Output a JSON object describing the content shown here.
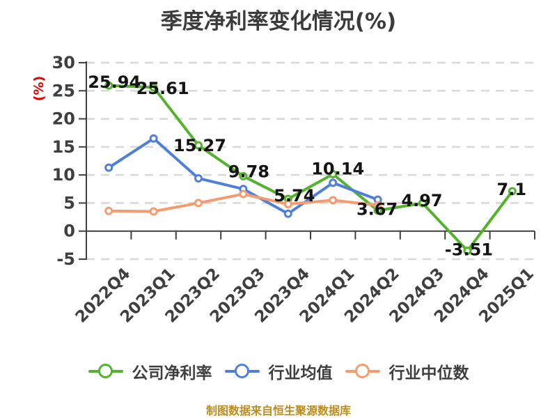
{
  "chart_data": {
    "type": "line",
    "title": "季度净利率变化情况(%)",
    "y_unit_label": "(%)",
    "footer": "制图数据来自恒生聚源数据库",
    "categories": [
      "2022Q4",
      "2023Q1",
      "2023Q2",
      "2023Q3",
      "2023Q4",
      "2024Q1",
      "2024Q2",
      "2024Q3",
      "2024Q4",
      "2025Q1"
    ],
    "y_ticks": [
      30,
      25,
      20,
      15,
      10,
      5,
      0,
      -5
    ],
    "ylim": [
      -5,
      30
    ],
    "grid": {
      "horizontal_dashed": true,
      "vertical": false
    },
    "legend_position": "bottom",
    "series": [
      {
        "key": "company-net-margin",
        "name": "公司净利率",
        "color": "#54b32c",
        "values": [
          25.94,
          25.61,
          15.27,
          9.78,
          5.74,
          10.14,
          3.67,
          4.97,
          -3.51,
          7.1
        ],
        "point_labels": [
          "25.94",
          "25.61",
          "15.27",
          "9.78",
          "5.74",
          "10.14",
          "3.67",
          "4.97",
          "-3.51",
          "7.1"
        ],
        "label_offsets": [
          [
            8,
            -5
          ],
          [
            13,
            1
          ],
          [
            2,
            0
          ],
          [
            8,
            -7
          ],
          [
            9,
            -5
          ],
          [
            7,
            -8
          ],
          [
            -1,
            -2
          ],
          [
            -1,
            -4
          ],
          [
            2,
            -2
          ],
          [
            -1,
            -3
          ]
        ]
      },
      {
        "key": "industry-mean",
        "name": "行业均值",
        "color": "#4f80d9",
        "values": [
          11.3,
          16.5,
          9.4,
          7.5,
          3.1,
          8.6,
          5.6
        ]
      },
      {
        "key": "industry-median",
        "name": "行业中位数",
        "color": "#f59b70",
        "values": [
          3.6,
          3.5,
          5.0,
          6.6,
          4.8,
          5.5,
          4.6
        ]
      }
    ],
    "colors": {
      "title": "#3b3b3b",
      "axis_line": "#3f3f3f",
      "tick_label": "#3f3f3f",
      "grid_line": "#d8d8d8",
      "point_label": "#141414",
      "marker_fill": "#ffffff",
      "y_unit": "#e60000",
      "footer": "#bd8c1a",
      "background": "#ffffff"
    }
  }
}
